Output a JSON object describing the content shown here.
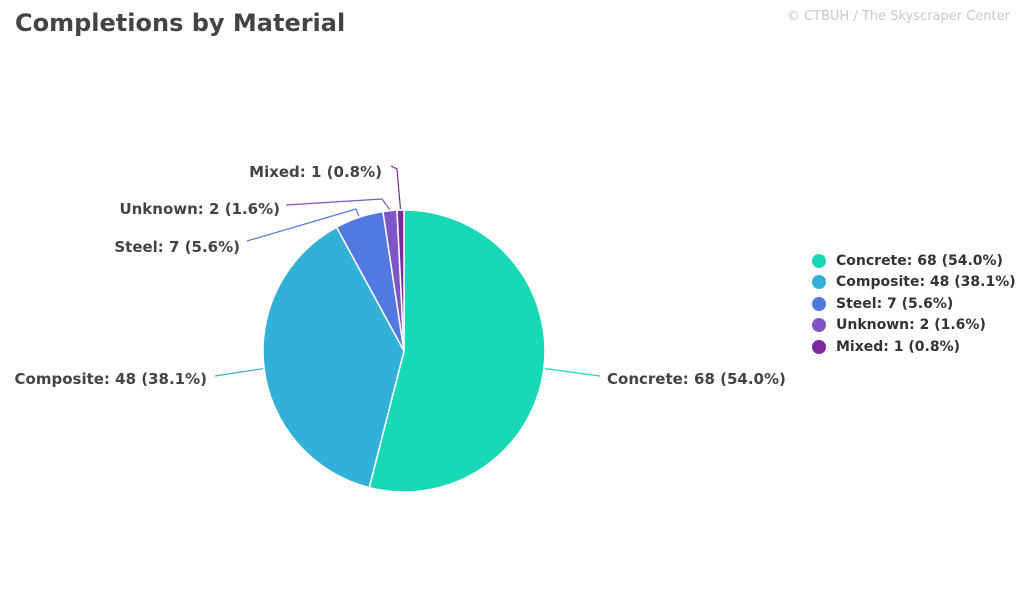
{
  "title": "Completions by Material",
  "credit": "© CTBUH / The Skyscraper Center",
  "chart_data": {
    "type": "pie",
    "title": "Completions by Material",
    "slices": [
      {
        "name": "Concrete",
        "value": 68,
        "percent": 54.0,
        "label": "Concrete: 68 (54.0%)",
        "color": "#17d9b5"
      },
      {
        "name": "Composite",
        "value": 48,
        "percent": 38.1,
        "label": "Composite: 48 (38.1%)",
        "color": "#33b0d8"
      },
      {
        "name": "Steel",
        "value": 7,
        "percent": 5.6,
        "label": "Steel: 7 (5.6%)",
        "color": "#5278e2"
      },
      {
        "name": "Unknown",
        "value": 2,
        "percent": 1.6,
        "label": "Unknown: 2 (1.6%)",
        "color": "#7e55c7"
      },
      {
        "name": "Mixed",
        "value": 1,
        "percent": 0.8,
        "label": "Mixed: 1 (0.8%)",
        "color": "#7e2a9c"
      }
    ],
    "legend_position": "right"
  }
}
